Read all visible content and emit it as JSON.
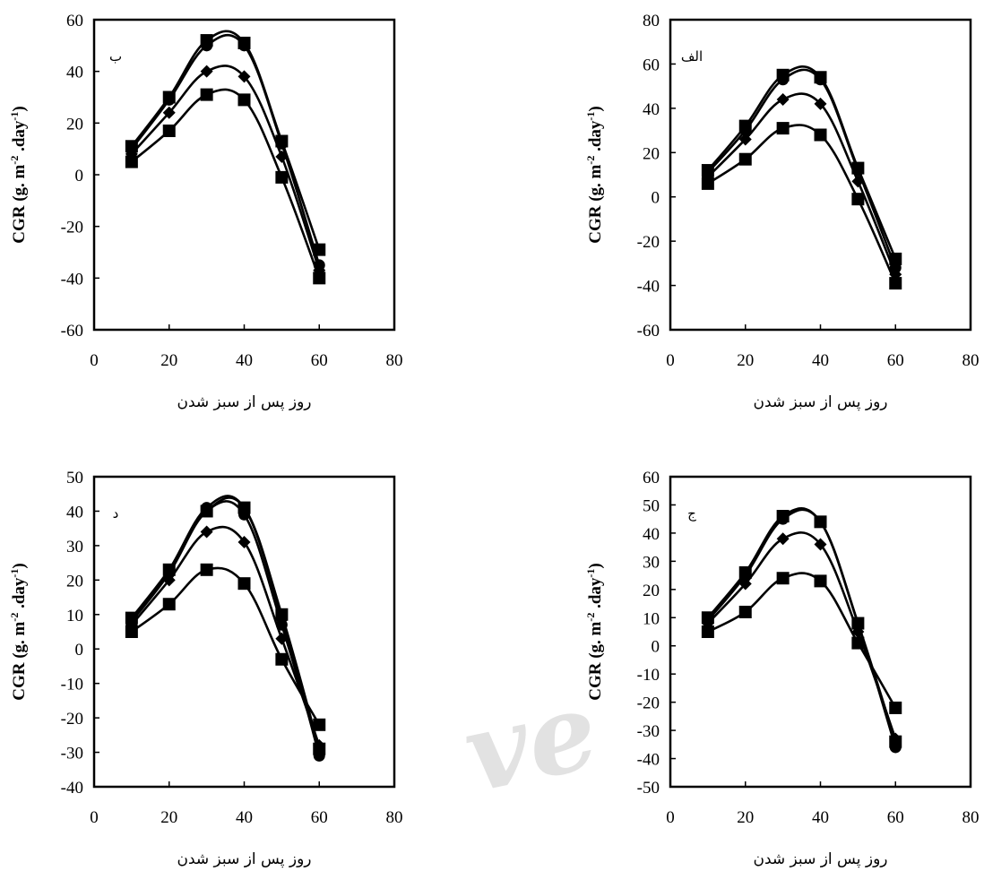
{
  "figure": {
    "watermark_text": "ve"
  },
  "chart_data": [
    {
      "type": "line",
      "panel_label": "ب",
      "xlabel": "روز پس از سبز شدن",
      "ylabel": {
        "prefix": "CGR (g. m",
        "sup1": "-2",
        "mid": " .day",
        "sup2": "-1",
        "suffix": ")"
      },
      "xlim": [
        0,
        80
      ],
      "ylim": [
        -60,
        60
      ],
      "xticks": [
        0,
        20,
        40,
        60,
        80
      ],
      "yticks": [
        -60,
        -40,
        -20,
        0,
        20,
        40,
        60
      ],
      "x": [
        10,
        20,
        30,
        40,
        50,
        60
      ],
      "series": [
        {
          "marker": "square",
          "values": [
            5,
            17,
            31,
            29,
            -1,
            -40
          ]
        },
        {
          "marker": "diamond",
          "values": [
            8,
            24,
            40,
            38,
            7,
            -37
          ]
        },
        {
          "marker": "circle",
          "values": [
            10,
            29,
            50,
            50,
            12,
            -35
          ]
        },
        {
          "marker": "square",
          "values": [
            11,
            30,
            52,
            51,
            13,
            -29
          ]
        }
      ]
    },
    {
      "type": "line",
      "panel_label": "الف",
      "xlabel": "روز پس از سبز شدن",
      "ylabel": {
        "prefix": "CGR (g. m",
        "sup1": "-2",
        "mid": " .day",
        "sup2": "-1",
        "suffix": ")"
      },
      "xlim": [
        0,
        80
      ],
      "ylim": [
        -60,
        80
      ],
      "xticks": [
        0,
        20,
        40,
        60,
        80
      ],
      "yticks": [
        -60,
        -40,
        -20,
        0,
        20,
        40,
        60,
        80
      ],
      "x": [
        10,
        20,
        30,
        40,
        50,
        60
      ],
      "series": [
        {
          "marker": "square",
          "values": [
            6,
            17,
            31,
            28,
            -1,
            -39
          ]
        },
        {
          "marker": "diamond",
          "values": [
            9,
            26,
            44,
            42,
            7,
            -35
          ]
        },
        {
          "marker": "circle",
          "values": [
            11,
            30,
            53,
            53,
            12,
            -32
          ]
        },
        {
          "marker": "square",
          "values": [
            12,
            32,
            55,
            54,
            13,
            -28
          ]
        }
      ]
    },
    {
      "type": "line",
      "panel_label": "د",
      "xlabel": "روز پس از سبز شدن",
      "ylabel": {
        "prefix": "CGR (g. m",
        "sup1": "-2",
        "mid": " .day",
        "sup2": "-1",
        "suffix": ")"
      },
      "xlim": [
        0,
        80
      ],
      "ylim": [
        -40,
        50
      ],
      "xticks": [
        0,
        20,
        40,
        60,
        80
      ],
      "yticks": [
        -40,
        -30,
        -20,
        -10,
        0,
        10,
        20,
        30,
        40,
        50
      ],
      "x": [
        10,
        20,
        30,
        40,
        50,
        60
      ],
      "series": [
        {
          "marker": "square",
          "values": [
            5,
            13,
            23,
            19,
            -3,
            -22
          ]
        },
        {
          "marker": "diamond",
          "values": [
            7,
            20,
            34,
            31,
            3,
            -28
          ]
        },
        {
          "marker": "circle",
          "values": [
            8,
            22,
            40,
            39,
            7,
            -30
          ]
        },
        {
          "marker": "circle",
          "values": [
            8,
            23,
            41,
            41,
            9,
            -31
          ]
        },
        {
          "marker": "square",
          "values": [
            9,
            23,
            40,
            41,
            10,
            -29
          ]
        }
      ]
    },
    {
      "type": "line",
      "panel_label": "ج",
      "xlabel": "روز پس از سبز شدن",
      "ylabel": {
        "prefix": "CGR (g. m",
        "sup1": "-2",
        "mid": " .day",
        "sup2": "-1",
        "suffix": ")"
      },
      "xlim": [
        0,
        80
      ],
      "ylim": [
        -50,
        60
      ],
      "xticks": [
        0,
        20,
        40,
        60,
        80
      ],
      "yticks": [
        -50,
        -40,
        -30,
        -20,
        -10,
        0,
        10,
        20,
        30,
        40,
        50,
        60
      ],
      "x": [
        10,
        20,
        30,
        40,
        50,
        60
      ],
      "series": [
        {
          "marker": "square",
          "values": [
            5,
            12,
            24,
            23,
            1,
            -22
          ]
        },
        {
          "marker": "diamond",
          "values": [
            8,
            22,
            38,
            36,
            5,
            -33
          ]
        },
        {
          "marker": "circle",
          "values": [
            9,
            25,
            45,
            44,
            8,
            -36
          ]
        },
        {
          "marker": "square",
          "values": [
            10,
            26,
            46,
            44,
            8,
            -34
          ]
        }
      ]
    }
  ]
}
